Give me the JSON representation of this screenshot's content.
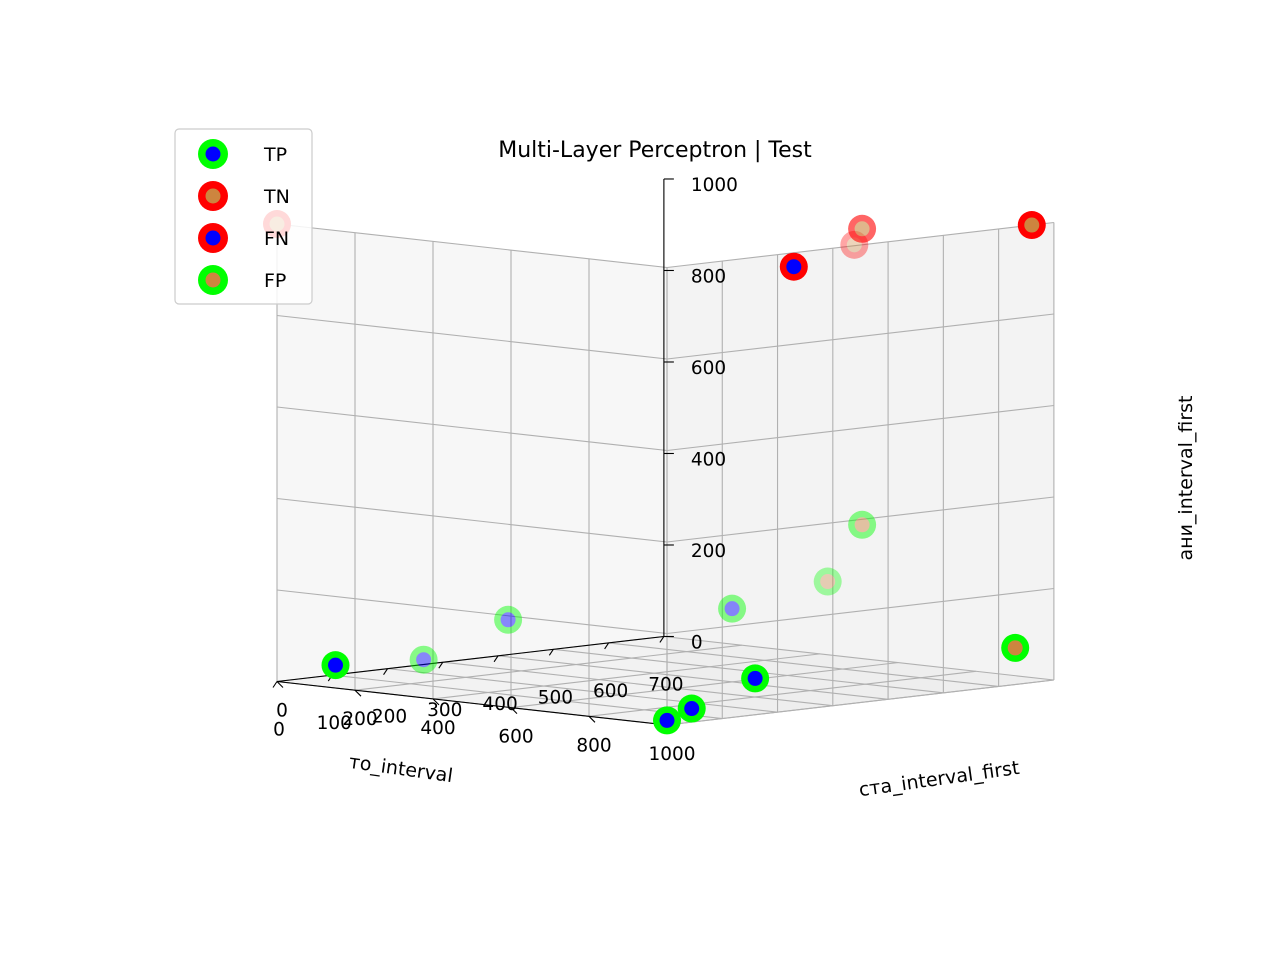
{
  "chart_data": {
    "type": "scatter",
    "projection": "3d",
    "title": "Multi-Layer Perceptron | Test",
    "xlabel": "то_interval",
    "ylabel": "ста_interval_first",
    "zlabel": "ани_interval_first",
    "xlim": [
      0,
      1000
    ],
    "ylim": [
      0,
      700
    ],
    "zlim": [
      0,
      1000
    ],
    "x_ticks": [
      "0",
      "200",
      "400",
      "600",
      "800",
      "1000"
    ],
    "y_ticks": [
      "0",
      "100",
      "200",
      "300",
      "400",
      "500",
      "600",
      "700"
    ],
    "z_ticks": [
      "0",
      "200",
      "400",
      "600",
      "800",
      "1000"
    ],
    "grid": true,
    "legend_position": "upper-left",
    "legend": [
      {
        "label": "TP",
        "edge": "#00ff00",
        "face": "#0000ff"
      },
      {
        "label": "TN",
        "edge": "#ff0000",
        "face": "#cd853f"
      },
      {
        "label": "FN",
        "edge": "#ff0000",
        "face": "#0000ff"
      },
      {
        "label": "FP",
        "edge": "#00ff00",
        "face": "#cd853f"
      }
    ],
    "series": [
      {
        "name": "TP",
        "points": [
          {
            "x": 150,
            "y": 0,
            "z": 50,
            "alpha": 1.0
          },
          {
            "x": 380,
            "y": 150,
            "z": 150,
            "alpha": 0.45
          },
          {
            "x": 600,
            "y": 400,
            "z": 160,
            "alpha": 0.45
          },
          {
            "x": 1000,
            "y": 0,
            "z": 10,
            "alpha": 1.0
          },
          {
            "x": 950,
            "y": 80,
            "z": 20,
            "alpha": 1.0
          },
          {
            "x": 900,
            "y": 230,
            "z": 60,
            "alpha": 1.0
          },
          {
            "x": 50,
            "y": 230,
            "z": 20,
            "alpha": 0.45
          }
        ]
      },
      {
        "name": "TN",
        "points": [
          {
            "x": 0,
            "y": 0,
            "z": 1000,
            "alpha": 1.0
          },
          {
            "x": 820,
            "y": 480,
            "z": 1000,
            "alpha": 0.6
          },
          {
            "x": 1000,
            "y": 660,
            "z": 1000,
            "alpha": 1.0
          },
          {
            "x": 630,
            "y": 600,
            "z": 930,
            "alpha": 0.35
          }
        ]
      },
      {
        "name": "FN",
        "points": [
          {
            "x": 900,
            "y": 300,
            "z": 950,
            "alpha": 1.0
          }
        ]
      },
      {
        "name": "FP",
        "points": [
          {
            "x": 1000,
            "y": 630,
            "z": 80,
            "alpha": 1.0
          },
          {
            "x": 650,
            "y": 600,
            "z": 320,
            "alpha": 0.45
          },
          {
            "x": 420,
            "y": 700,
            "z": 160,
            "alpha": 0.35
          }
        ]
      }
    ]
  }
}
